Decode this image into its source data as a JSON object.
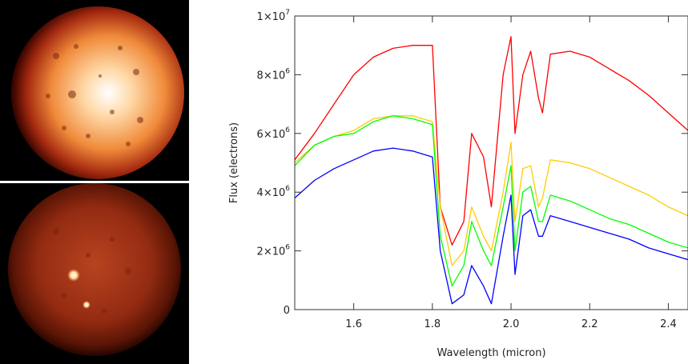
{
  "chart_data": {
    "type": "line",
    "title": "",
    "xlabel": "Wavelength (micron)",
    "ylabel": "Flux (electrons)",
    "xlim": [
      1.45,
      2.45
    ],
    "ylim": [
      0,
      10000000
    ],
    "grid": false,
    "x_ticks": [
      {
        "value": 1.6,
        "label": "1.6"
      },
      {
        "value": 1.8,
        "label": "1.8"
      },
      {
        "value": 2.0,
        "label": "2.0"
      },
      {
        "value": 2.2,
        "label": "2.2"
      },
      {
        "value": 2.4,
        "label": "2.4"
      }
    ],
    "y_ticks": [
      {
        "value": 0,
        "mantissa": "0",
        "exponent": ""
      },
      {
        "value": 2000000,
        "mantissa": "2×10",
        "exponent": "6"
      },
      {
        "value": 4000000,
        "mantissa": "4×10",
        "exponent": "6"
      },
      {
        "value": 6000000,
        "mantissa": "6×10",
        "exponent": "6"
      },
      {
        "value": 8000000,
        "mantissa": "8×10",
        "exponent": "6"
      },
      {
        "value": 10000000,
        "mantissa": "1×10",
        "exponent": "7"
      }
    ],
    "x": [
      1.45,
      1.5,
      1.55,
      1.6,
      1.65,
      1.7,
      1.75,
      1.8,
      1.82,
      1.85,
      1.88,
      1.9,
      1.93,
      1.95,
      1.98,
      2.0,
      2.01,
      2.03,
      2.05,
      2.07,
      2.08,
      2.1,
      2.15,
      2.2,
      2.25,
      2.3,
      2.35,
      2.4,
      2.45
    ],
    "series": [
      {
        "color": "#ff0000",
        "values": [
          5100000,
          6000000,
          7000000,
          8000000,
          8600000,
          8900000,
          9000000,
          9000000,
          3500000,
          2200000,
          3000000,
          6000000,
          5200000,
          3500000,
          8000000,
          9300000,
          6000000,
          8000000,
          8800000,
          7200000,
          6700000,
          8700000,
          8800000,
          8600000,
          8200000,
          7800000,
          7300000,
          6700000,
          6100000
        ]
      },
      {
        "color": "#ffcc00",
        "values": [
          5000000,
          5600000,
          5900000,
          6100000,
          6500000,
          6600000,
          6600000,
          6400000,
          3500000,
          1500000,
          2000000,
          3500000,
          2500000,
          2000000,
          4000000,
          5700000,
          3000000,
          4800000,
          4900000,
          3500000,
          3800000,
          5100000,
          5000000,
          4800000,
          4500000,
          4200000,
          3900000,
          3500000,
          3200000
        ]
      },
      {
        "color": "#00ff00",
        "values": [
          4900000,
          5600000,
          5900000,
          6000000,
          6400000,
          6600000,
          6500000,
          6300000,
          2500000,
          800000,
          1500000,
          3000000,
          2000000,
          1500000,
          3500000,
          4900000,
          2000000,
          4000000,
          4200000,
          3000000,
          3000000,
          3900000,
          3700000,
          3400000,
          3100000,
          2900000,
          2600000,
          2300000,
          2100000
        ]
      },
      {
        "color": "#0000ff",
        "values": [
          3800000,
          4400000,
          4800000,
          5100000,
          5400000,
          5500000,
          5400000,
          5200000,
          2000000,
          200000,
          500000,
          1500000,
          800000,
          200000,
          2500000,
          3900000,
          1200000,
          3200000,
          3400000,
          2500000,
          2500000,
          3200000,
          3000000,
          2800000,
          2600000,
          2400000,
          2100000,
          1900000,
          1700000
        ]
      }
    ]
  }
}
